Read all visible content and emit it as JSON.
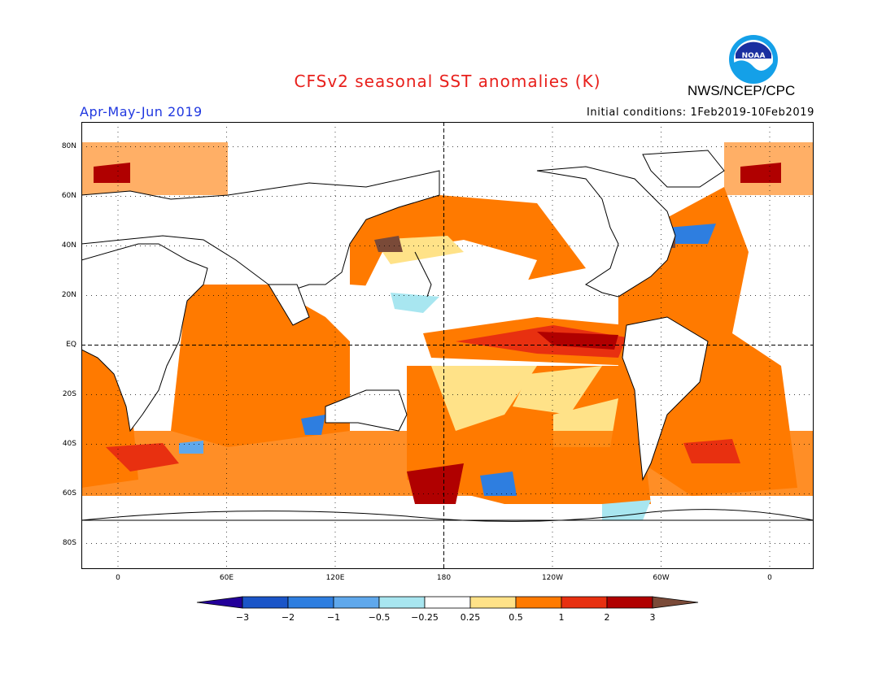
{
  "header": {
    "title": "CFSv2 seasonal SST anomalies (K)",
    "period": "Apr-May-Jun 2019",
    "initial_conditions": "Initial conditions: 1Feb2019-10Feb2019",
    "agency": "NWS/NCEP/CPC",
    "logo_text": "NOAA"
  },
  "colors": {
    "title": "#e8201c",
    "period": "#2038e0",
    "grid": "#000000",
    "land": "#ffffff",
    "neutral": "#ffffff"
  },
  "map": {
    "lat_labels": [
      "80N",
      "60N",
      "40N",
      "20N",
      "EQ",
      "20S",
      "40S",
      "60S",
      "80S"
    ],
    "lon_labels": [
      "0",
      "60E",
      "120E",
      "180",
      "120W",
      "60W",
      "0"
    ]
  },
  "colorbar": {
    "tick_labels": [
      "−3",
      "−2",
      "−1",
      "−0.5",
      "−0.25",
      "0.25",
      "0.5",
      "1",
      "2",
      "3"
    ],
    "colors": [
      "#23009a",
      "#1a55c8",
      "#2e7ee0",
      "#5fa8ec",
      "#a8e6f0",
      "#ffffff",
      "#ffe288",
      "#ff7a00",
      "#e83010",
      "#b00000",
      "#7a4a38"
    ]
  }
}
